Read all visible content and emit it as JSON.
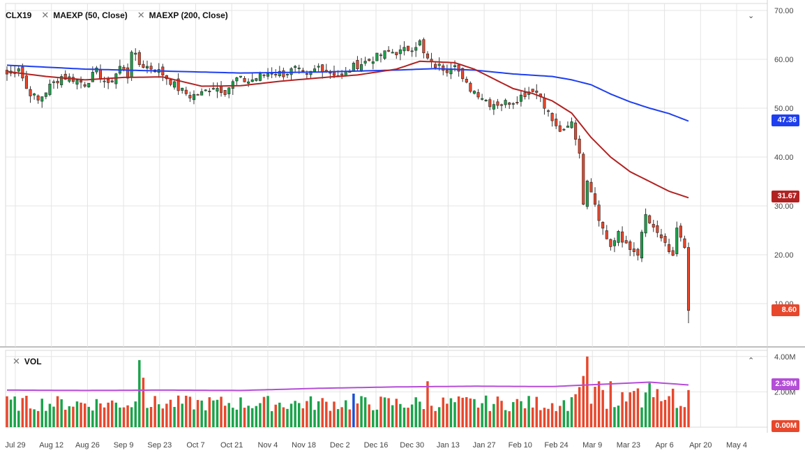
{
  "legend": {
    "symbol": "CLX19",
    "ma50": "MAEXP (50, Close)",
    "ma200": "MAEXP (200, Close)",
    "volume": "VOL"
  },
  "price_tags": {
    "ma200": "47.36",
    "ma50": "31.67",
    "last": "8.60",
    "avg_vol": "2.39M",
    "vol_zero": "0.00M"
  },
  "colors": {
    "up": "#1aa34a",
    "down": "#e8472c",
    "ma50": "#b22222",
    "ma200": "#1e3ff0",
    "vol_avg": "#b44dd8",
    "grid": "#e4e4e4",
    "blue_bar": "#1c4fd6"
  },
  "chart_data": [
    {
      "type": "candlestick",
      "title": "",
      "symbol": "CLX19",
      "y_axis": {
        "min": 5,
        "max": 70,
        "ticks": [
          "70.00",
          "60.00",
          "50.00",
          "40.00",
          "30.00",
          "20.00",
          "10.00"
        ]
      },
      "x_axis_ticks": [
        "Jul 29",
        "Aug 12",
        "Aug 26",
        "Sep 9",
        "Sep 23",
        "Oct 7",
        "Oct 21",
        "Nov 4",
        "Nov 18",
        "Dec 2",
        "Dec 16",
        "Dec 30",
        "Jan 13",
        "Jan 27",
        "Feb 10",
        "Feb 24",
        "Mar 9",
        "Mar 23",
        "Apr 6",
        "Apr 20",
        "May 4"
      ],
      "close_anchors": [
        [
          0,
          57
        ],
        [
          3,
          58.5
        ],
        [
          5,
          54
        ],
        [
          8,
          51.5
        ],
        [
          11,
          54.5
        ],
        [
          14,
          56.5
        ],
        [
          17,
          56
        ],
        [
          20,
          55
        ],
        [
          23,
          57.5
        ],
        [
          26,
          54.5
        ],
        [
          29,
          58.5
        ],
        [
          31,
          56.5
        ],
        [
          32,
          62
        ],
        [
          34,
          59
        ],
        [
          36,
          58.5
        ],
        [
          38,
          58
        ],
        [
          40,
          57
        ],
        [
          42,
          55.5
        ],
        [
          44,
          54
        ],
        [
          47,
          52.5
        ],
        [
          50,
          53
        ],
        [
          53,
          54.5
        ],
        [
          56,
          53.5
        ],
        [
          59,
          56
        ],
        [
          62,
          55.5
        ],
        [
          65,
          56.5
        ],
        [
          68,
          57.5
        ],
        [
          71,
          57
        ],
        [
          74,
          58
        ],
        [
          77,
          56.5
        ],
        [
          80,
          58.5
        ],
        [
          83,
          57.5
        ],
        [
          86,
          56.5
        ],
        [
          89,
          58.5
        ],
        [
          92,
          59.5
        ],
        [
          95,
          60.5
        ],
        [
          98,
          61.5
        ],
        [
          101,
          61.5
        ],
        [
          104,
          62.5
        ],
        [
          106,
          63.5
        ],
        [
          107,
          61
        ],
        [
          109,
          59
        ],
        [
          111,
          58.5
        ],
        [
          113,
          58
        ],
        [
          115,
          59.5
        ],
        [
          117,
          55.5
        ],
        [
          119,
          54
        ],
        [
          121,
          53
        ],
        [
          124,
          51
        ],
        [
          127,
          51
        ],
        [
          130,
          51.5
        ],
        [
          133,
          53
        ],
        [
          135,
          54
        ],
        [
          137,
          52.5
        ],
        [
          139,
          49
        ],
        [
          141,
          46
        ],
        [
          143,
          45
        ],
        [
          145,
          47
        ],
        [
          147,
          41
        ],
        [
          148,
          31
        ],
        [
          149,
          34.5
        ],
        [
          150,
          33.5
        ],
        [
          151,
          31
        ],
        [
          152,
          27.5
        ],
        [
          154,
          24
        ],
        [
          155,
          21.5
        ],
        [
          156,
          23
        ],
        [
          157,
          25
        ],
        [
          158,
          22.5
        ],
        [
          160,
          21
        ],
        [
          162,
          20.5
        ],
        [
          163,
          24
        ],
        [
          164,
          28
        ],
        [
          166,
          25
        ],
        [
          168,
          23.5
        ],
        [
          170,
          20
        ],
        [
          171,
          20
        ],
        [
          172,
          25.5
        ],
        [
          174,
          21
        ],
        [
          175,
          8.6
        ]
      ],
      "ma50_anchors": [
        [
          0,
          57.5
        ],
        [
          10,
          56.5
        ],
        [
          20,
          55.8
        ],
        [
          30,
          56.3
        ],
        [
          40,
          56.4
        ],
        [
          50,
          54.5
        ],
        [
          60,
          54.6
        ],
        [
          70,
          55.5
        ],
        [
          80,
          56.2
        ],
        [
          90,
          56.8
        ],
        [
          100,
          58
        ],
        [
          106,
          59.6
        ],
        [
          110,
          59.5
        ],
        [
          115,
          59.3
        ],
        [
          120,
          58
        ],
        [
          125,
          56
        ],
        [
          130,
          54
        ],
        [
          135,
          53
        ],
        [
          140,
          51.5
        ],
        [
          145,
          49
        ],
        [
          150,
          44
        ],
        [
          155,
          40
        ],
        [
          160,
          37
        ],
        [
          165,
          35
        ],
        [
          170,
          33
        ],
        [
          175,
          31.67
        ]
      ],
      "ma200_anchors": [
        [
          0,
          58.8
        ],
        [
          20,
          58
        ],
        [
          40,
          57.6
        ],
        [
          60,
          57.2
        ],
        [
          80,
          57.4
        ],
        [
          100,
          57.8
        ],
        [
          110,
          58.1
        ],
        [
          120,
          57.8
        ],
        [
          130,
          57
        ],
        [
          140,
          56.5
        ],
        [
          145,
          55.8
        ],
        [
          150,
          54.8
        ],
        [
          155,
          52.9
        ],
        [
          160,
          51.3
        ],
        [
          165,
          50
        ],
        [
          170,
          48.9
        ],
        [
          175,
          47.36
        ]
      ],
      "volume": {
        "y_axis": {
          "max": 4,
          "ticks": [
            "4.00M",
            "2.00M"
          ]
        },
        "avg_value": 2.39,
        "spikes": [
          [
            34,
            3.8,
            "up"
          ],
          [
            35,
            2.8,
            "down"
          ],
          [
            108,
            2.6,
            "down"
          ],
          [
            89,
            1.9,
            "blue"
          ],
          [
            148,
            2.9,
            "down"
          ],
          [
            149,
            4.0,
            "down"
          ],
          [
            152,
            2.6,
            "down"
          ],
          [
            155,
            2.6,
            "down"
          ],
          [
            165,
            2.5,
            "up"
          ],
          [
            175,
            2.1,
            "down"
          ]
        ],
        "avg_anchors": [
          [
            0,
            2.1
          ],
          [
            20,
            2.08
          ],
          [
            40,
            2.1
          ],
          [
            60,
            2.08
          ],
          [
            80,
            2.2
          ],
          [
            100,
            2.28
          ],
          [
            120,
            2.32
          ],
          [
            140,
            2.3
          ],
          [
            160,
            2.5
          ],
          [
            165,
            2.55
          ],
          [
            175,
            2.39
          ]
        ]
      }
    }
  ]
}
